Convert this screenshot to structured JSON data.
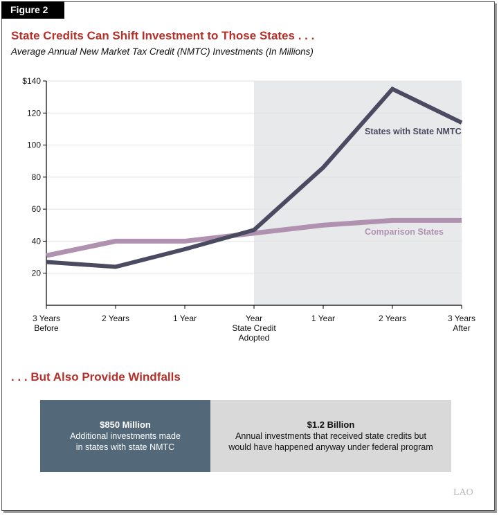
{
  "figure_label": "Figure 2",
  "title": "State Credits Can Shift Investment to Those States . . .",
  "subtitle": "Average Annual New Market Tax Credit (NMTC) Investments (In Millions)",
  "chart_data": {
    "type": "line",
    "categories": [
      [
        "3 Years",
        "Before"
      ],
      [
        "2 Years"
      ],
      [
        "1 Year"
      ],
      [
        "Year",
        "State Credit",
        "Adopted"
      ],
      [
        "1 Year"
      ],
      [
        "2 Years"
      ],
      [
        "3 Years",
        "After"
      ]
    ],
    "ylim": [
      0,
      140
    ],
    "yticks": [
      20,
      40,
      60,
      80,
      100,
      120,
      140
    ],
    "ytick_labels": [
      "20",
      "40",
      "60",
      "80",
      "100",
      "120",
      "$140"
    ],
    "grid": true,
    "shaded_region": {
      "from_index": 3,
      "to_index": 6,
      "color": "#e8e9eb"
    },
    "series": [
      {
        "name": "States with State NMTC",
        "color": "#4a4a60",
        "values": [
          27,
          24,
          35,
          47,
          86,
          135,
          114
        ]
      },
      {
        "name": "Comparison States",
        "color": "#b092b0",
        "values": [
          31,
          40,
          40,
          45,
          50,
          53,
          53
        ]
      }
    ]
  },
  "section2_title": ". . . But Also Provide Windfalls",
  "boxes": [
    {
      "headline": "$850 Million",
      "lines": [
        "Additional investments made",
        "in states with state NMTC"
      ],
      "color": "#536878"
    },
    {
      "headline": "$1.2 Billion",
      "lines": [
        "Annual investments that received state credits but",
        "would have happened anyway under federal program"
      ],
      "color": "#d9d9d9"
    }
  ],
  "logo": "LAO"
}
